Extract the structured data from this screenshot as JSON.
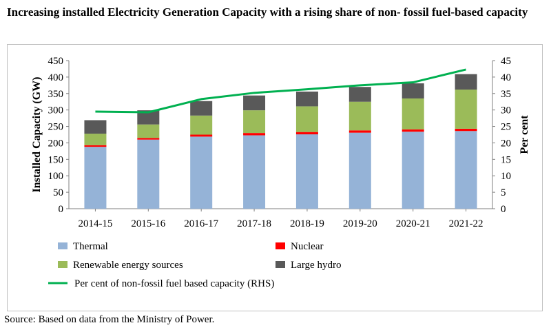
{
  "title": "Increasing installed Electricity Generation Capacity with a rising share of non- fossil fuel-based capacity",
  "source": "Source: Based on data from the Ministry of Power.",
  "chart_data": {
    "type": "bar",
    "stacked": true,
    "categories": [
      "2014-15",
      "2015-16",
      "2016-17",
      "2017-18",
      "2018-19",
      "2019-20",
      "2020-21",
      "2021-22"
    ],
    "series": [
      {
        "name": "Thermal",
        "color": "#95b3d7",
        "values": [
          188,
          210,
          219,
          223,
          226,
          231,
          234,
          236
        ]
      },
      {
        "name": "Nuclear",
        "color": "#ff0000",
        "values": [
          5,
          5,
          6,
          7,
          7,
          7,
          7,
          7
        ]
      },
      {
        "name": "Renewable energy sources",
        "color": "#9bbb59",
        "values": [
          35,
          41,
          58,
          69,
          78,
          87,
          94,
          119
        ]
      },
      {
        "name": "Large hydro",
        "color": "#595959",
        "values": [
          41,
          43,
          44,
          45,
          45,
          45,
          46,
          47
        ]
      }
    ],
    "line_series": {
      "name": "Per cent of non-fossil fuel based capacity (RHS)",
      "color": "#00b050",
      "axis": "right",
      "values": [
        29.5,
        29.3,
        33.3,
        35.2,
        36.3,
        37.5,
        38.4,
        42.3
      ]
    },
    "ylabel": "Installed Capacity (GW)",
    "ylim": [
      0,
      450
    ],
    "yticks": [
      0,
      50,
      100,
      150,
      200,
      250,
      300,
      350,
      400,
      450
    ],
    "y2label": "Per cent",
    "y2lim": [
      0,
      45
    ],
    "y2ticks": [
      0,
      5,
      10,
      15,
      20,
      25,
      30,
      35,
      40,
      45
    ],
    "legend_position": "bottom"
  }
}
